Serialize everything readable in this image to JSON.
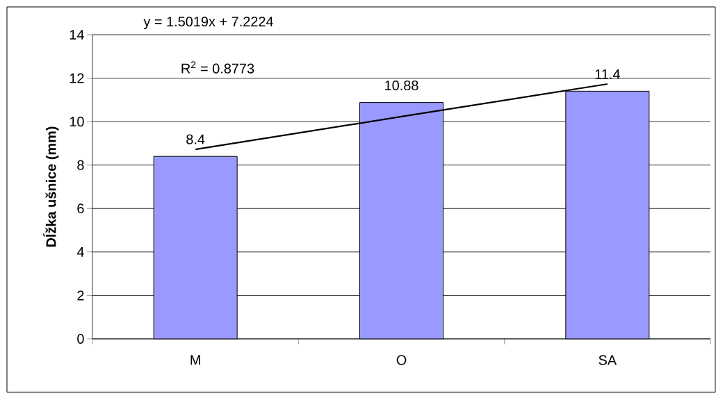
{
  "chart_data": {
    "type": "bar",
    "ylabel": "Dĺžka ušnice (mm)",
    "categories": [
      "M",
      "O",
      "SA"
    ],
    "series": [
      {
        "color": "#9999ff",
        "values": [
          8.4,
          10.88,
          11.4
        ],
        "value_labels": [
          "8.4",
          "10.88",
          "11.4"
        ]
      },
      {
        "type": "line",
        "color": "#000000",
        "values": [
          8.72,
          10.23,
          11.73
        ]
      }
    ],
    "annotations": [
      "y = 1.5019x + 7.2224",
      "R$^{2}$ = 0.8773"
    ],
    "ylim": [
      0,
      14
    ],
    "yticks": [
      0,
      2,
      4,
      6,
      8,
      10,
      12,
      14
    ],
    "grid": "y"
  }
}
